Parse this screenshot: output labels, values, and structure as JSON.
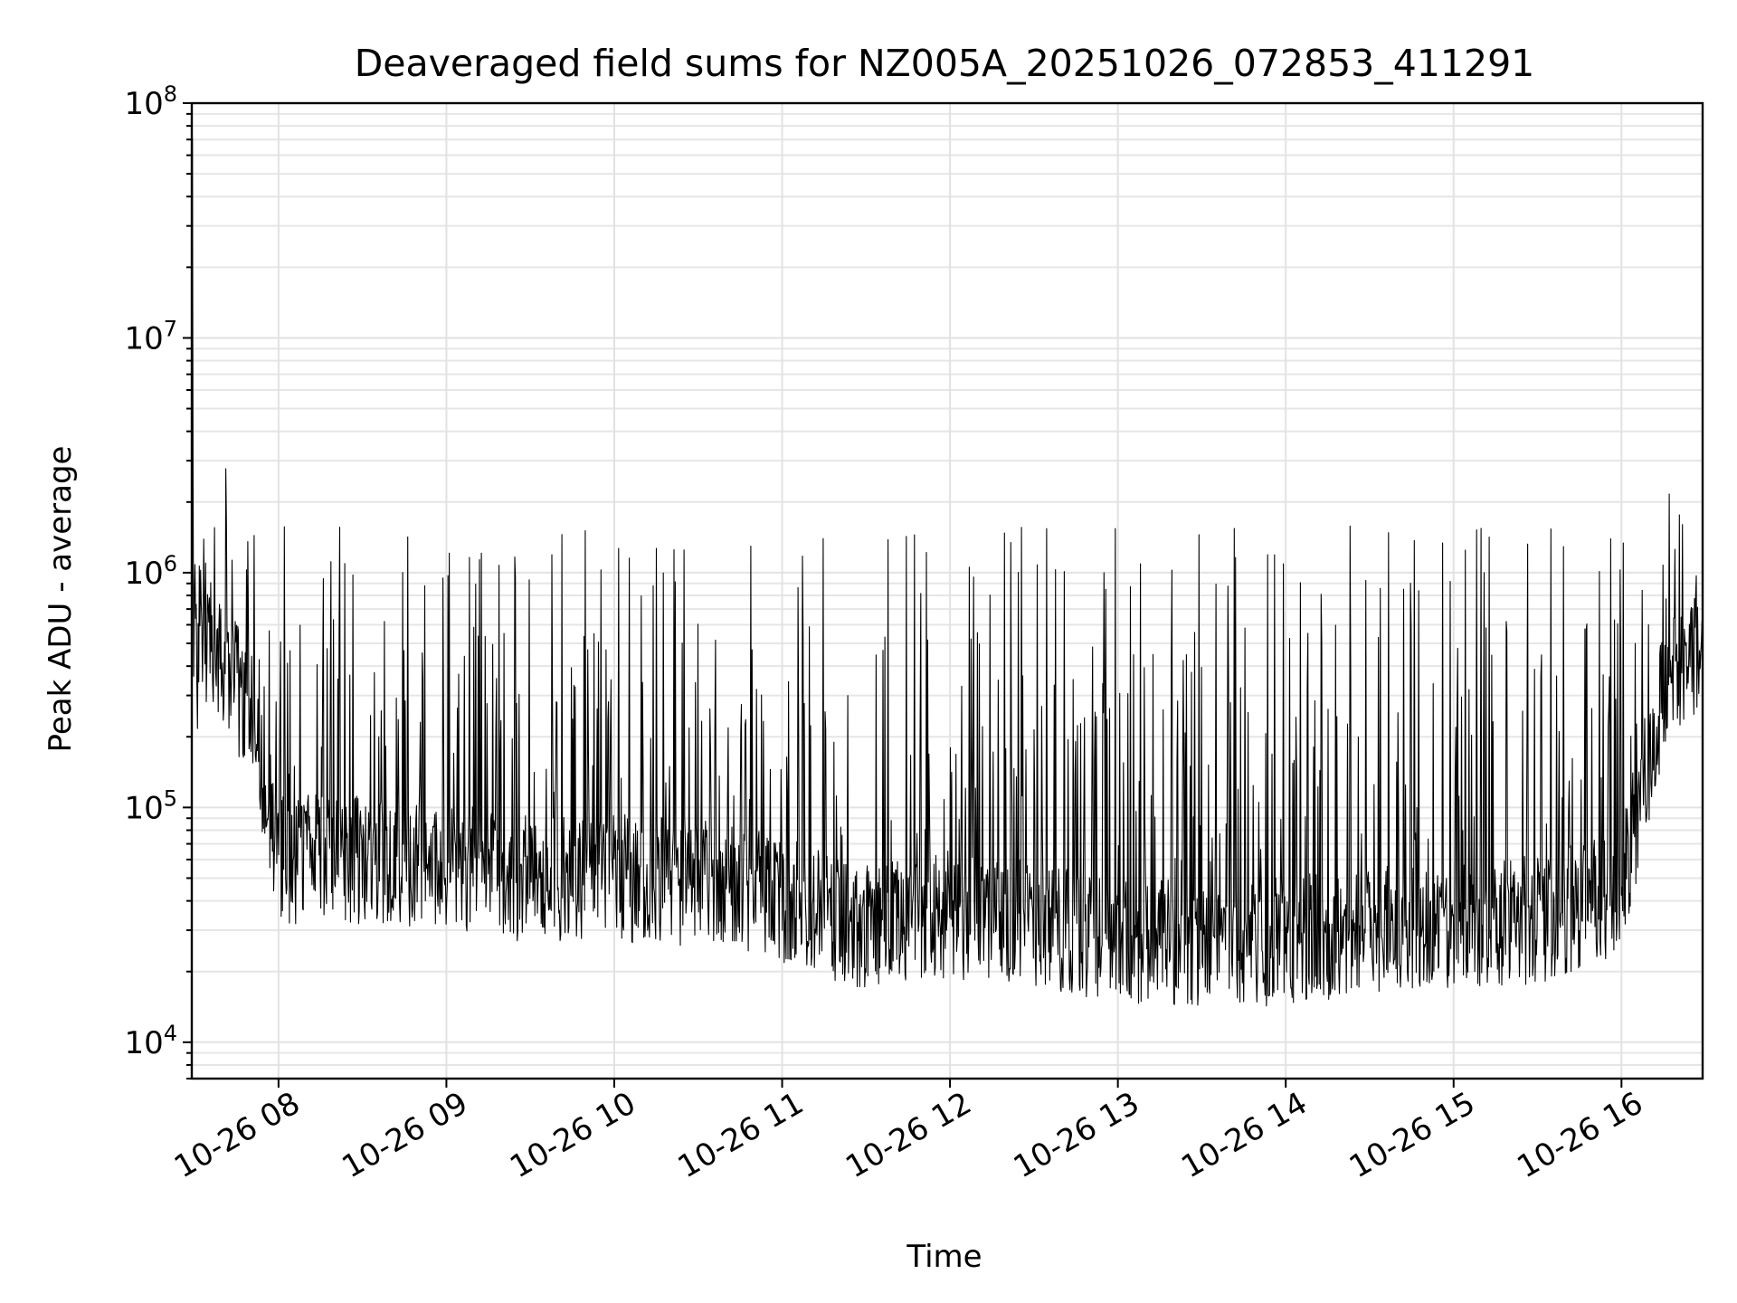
{
  "chart_data": {
    "type": "line",
    "title": "Deaveraged field sums for NZ005A_20251026_072853_411291",
    "xlabel": "Time",
    "ylabel": "Peak ADU - average",
    "yscale": "log",
    "xlim": [
      "2025-10-26 07:29",
      "2025-10-26 16:29"
    ],
    "ylim": [
      7000,
      100000000
    ],
    "grid": true,
    "legend": "none",
    "line_color": "#000000",
    "x_ticks": [
      "10-26 08",
      "10-26 09",
      "10-26 10",
      "10-26 11",
      "10-26 12",
      "10-26 13",
      "10-26 14",
      "10-26 15",
      "10-26 16"
    ],
    "y_ticks": [
      {
        "value": 10000,
        "base": "10",
        "exp": "4"
      },
      {
        "value": 100000,
        "base": "10",
        "exp": "5"
      },
      {
        "value": 1000000,
        "base": "10",
        "exp": "6"
      },
      {
        "value": 10000000,
        "base": "10",
        "exp": "7"
      },
      {
        "value": 100000000,
        "base": "10",
        "exp": "8"
      }
    ],
    "series": [
      {
        "x": [
          "2025-10-26 07:29",
          "2025-10-26 07:40",
          "2025-10-26 07:50",
          "2025-10-26 08:00",
          "2025-10-26 08:30",
          "2025-10-26 09:00",
          "2025-10-26 09:30",
          "2025-10-26 10:00",
          "2025-10-26 10:30",
          "2025-10-26 10:55",
          "2025-10-26 11:05",
          "2025-10-26 11:30",
          "2025-10-26 12:00",
          "2025-10-26 12:30",
          "2025-10-26 13:00",
          "2025-10-26 13:30",
          "2025-10-26 14:00",
          "2025-10-26 14:30",
          "2025-10-26 15:00",
          "2025-10-26 15:30",
          "2025-10-26 16:00",
          "2025-10-26 16:15",
          "2025-10-26 16:29"
        ],
        "values": [
          650000,
          420000,
          250000,
          60000,
          60000,
          55000,
          50000,
          50000,
          48000,
          45000,
          38000,
          30000,
          35000,
          32000,
          28000,
          26000,
          27000,
          30000,
          32000,
          33000,
          45000,
          300000,
          500000
        ]
      }
    ]
  }
}
